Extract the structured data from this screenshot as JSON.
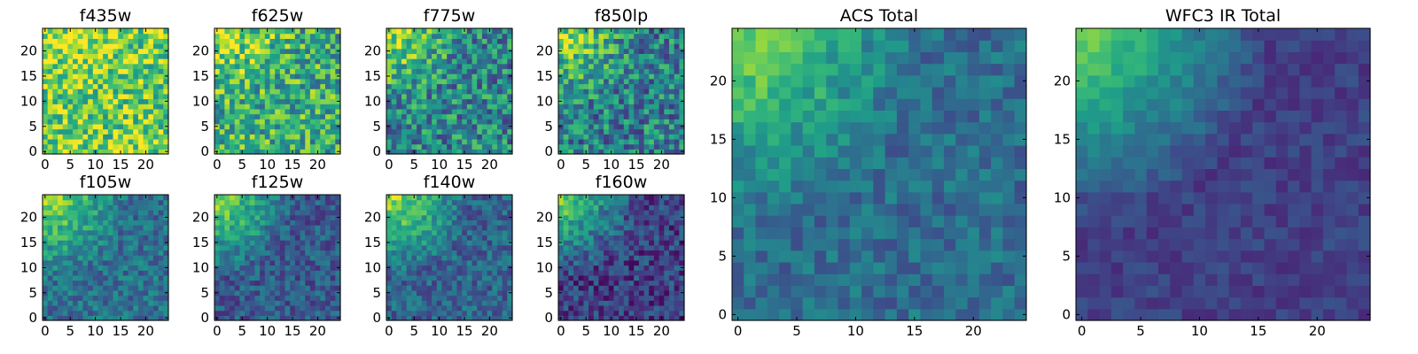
{
  "chart_data": [
    {
      "type": "heatmap",
      "title": "f435w",
      "xticks": [
        "0",
        "5",
        "10",
        "15",
        "20"
      ],
      "yticks": [
        "0",
        "5",
        "10",
        "15",
        "20"
      ],
      "grid_size": 25,
      "colormap": "viridis",
      "value_range": [
        0,
        1
      ],
      "mean_level": 0.82,
      "gradient_strength": 0.12,
      "noise_level": 0.28,
      "seed": 1
    },
    {
      "type": "heatmap",
      "title": "f625w",
      "xticks": [
        "0",
        "5",
        "10",
        "15",
        "20"
      ],
      "yticks": [
        "0",
        "5",
        "10",
        "15",
        "20"
      ],
      "grid_size": 25,
      "colormap": "viridis",
      "value_range": [
        0,
        1
      ],
      "mean_level": 0.72,
      "gradient_strength": 0.3,
      "noise_level": 0.3,
      "seed": 2
    },
    {
      "type": "heatmap",
      "title": "f775w",
      "xticks": [
        "0",
        "5",
        "10",
        "15",
        "20"
      ],
      "yticks": [
        "0",
        "5",
        "10",
        "15",
        "20"
      ],
      "grid_size": 25,
      "colormap": "viridis",
      "value_range": [
        0,
        1
      ],
      "mean_level": 0.6,
      "gradient_strength": 0.4,
      "noise_level": 0.28,
      "seed": 3
    },
    {
      "type": "heatmap",
      "title": "f850lp",
      "xticks": [
        "0",
        "5",
        "10",
        "15",
        "20"
      ],
      "yticks": [
        "0",
        "5",
        "10",
        "15",
        "20"
      ],
      "grid_size": 25,
      "colormap": "viridis",
      "value_range": [
        0,
        1
      ],
      "mean_level": 0.58,
      "gradient_strength": 0.42,
      "noise_level": 0.28,
      "seed": 4
    },
    {
      "type": "heatmap",
      "title": "f105w",
      "xticks": [
        "0",
        "5",
        "10",
        "15",
        "20"
      ],
      "yticks": [
        "0",
        "5",
        "10",
        "15",
        "20"
      ],
      "grid_size": 25,
      "colormap": "viridis",
      "value_range": [
        0,
        1
      ],
      "mean_level": 0.55,
      "gradient_strength": 0.5,
      "noise_level": 0.16,
      "seed": 5
    },
    {
      "type": "heatmap",
      "title": "f125w",
      "xticks": [
        "0",
        "5",
        "10",
        "15",
        "20"
      ],
      "yticks": [
        "0",
        "5",
        "10",
        "15",
        "20"
      ],
      "grid_size": 25,
      "colormap": "viridis",
      "value_range": [
        0,
        1
      ],
      "mean_level": 0.48,
      "gradient_strength": 0.55,
      "noise_level": 0.16,
      "seed": 6
    },
    {
      "type": "heatmap",
      "title": "f140w",
      "xticks": [
        "0",
        "5",
        "10",
        "15",
        "20"
      ],
      "yticks": [
        "0",
        "5",
        "10",
        "15",
        "20"
      ],
      "grid_size": 25,
      "colormap": "viridis",
      "value_range": [
        0,
        1
      ],
      "mean_level": 0.52,
      "gradient_strength": 0.55,
      "noise_level": 0.16,
      "seed": 7
    },
    {
      "type": "heatmap",
      "title": "f160w",
      "xticks": [
        "0",
        "5",
        "10",
        "15",
        "20"
      ],
      "yticks": [
        "0",
        "5",
        "10",
        "15",
        "20"
      ],
      "grid_size": 25,
      "colormap": "viridis",
      "value_range": [
        0,
        1
      ],
      "mean_level": 0.4,
      "gradient_strength": 0.6,
      "noise_level": 0.18,
      "seed": 8
    },
    {
      "type": "heatmap",
      "title": "ACS Total",
      "xticks": [
        "0",
        "5",
        "10",
        "15",
        "20"
      ],
      "yticks": [
        "0",
        "5",
        "10",
        "15",
        "20"
      ],
      "grid_size": 25,
      "colormap": "viridis",
      "value_range": [
        0,
        1
      ],
      "mean_level": 0.52,
      "gradient_strength": 0.45,
      "noise_level": 0.13,
      "seed": 9
    },
    {
      "type": "heatmap",
      "title": "WFC3 IR Total",
      "xticks": [
        "0",
        "5",
        "10",
        "15",
        "20"
      ],
      "yticks": [
        "0",
        "5",
        "10",
        "15",
        "20"
      ],
      "grid_size": 25,
      "colormap": "viridis",
      "value_range": [
        0,
        1
      ],
      "mean_level": 0.4,
      "gradient_strength": 0.6,
      "noise_level": 0.08,
      "seed": 10
    }
  ]
}
